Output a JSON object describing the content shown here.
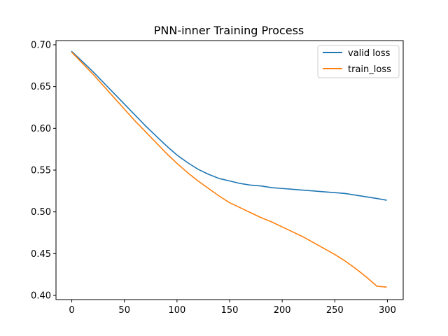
{
  "chart_data": {
    "type": "line",
    "title": "PNN-inner Training Process",
    "xlabel": "",
    "ylabel": "",
    "xlim": [
      -15,
      315
    ],
    "ylim": [
      0.395,
      0.705
    ],
    "x_ticks": [
      0,
      50,
      100,
      150,
      200,
      250,
      300
    ],
    "y_ticks": [
      0.4,
      0.45,
      0.5,
      0.55,
      0.6,
      0.65,
      0.7
    ],
    "grid": false,
    "legend_position": "top-right",
    "series": [
      {
        "name": "valid loss",
        "color": "#1f77b4",
        "x": [
          0,
          10,
          20,
          30,
          40,
          50,
          60,
          70,
          80,
          90,
          100,
          110,
          120,
          130,
          140,
          150,
          160,
          170,
          180,
          190,
          200,
          210,
          220,
          230,
          240,
          250,
          260,
          270,
          280,
          290,
          299
        ],
        "y": [
          0.692,
          0.68,
          0.668,
          0.655,
          0.642,
          0.629,
          0.616,
          0.603,
          0.591,
          0.579,
          0.568,
          0.559,
          0.551,
          0.545,
          0.54,
          0.537,
          0.534,
          0.532,
          0.531,
          0.529,
          0.528,
          0.527,
          0.526,
          0.525,
          0.524,
          0.523,
          0.522,
          0.52,
          0.518,
          0.516,
          0.514
        ]
      },
      {
        "name": "train_loss",
        "color": "#ff7f0e",
        "x": [
          0,
          10,
          20,
          30,
          40,
          50,
          60,
          70,
          80,
          90,
          100,
          110,
          120,
          130,
          140,
          150,
          160,
          170,
          180,
          190,
          200,
          210,
          220,
          230,
          240,
          250,
          260,
          270,
          280,
          290,
          299
        ],
        "y": [
          0.691,
          0.678,
          0.665,
          0.651,
          0.637,
          0.623,
          0.609,
          0.596,
          0.583,
          0.57,
          0.558,
          0.547,
          0.537,
          0.528,
          0.519,
          0.511,
          0.505,
          0.499,
          0.493,
          0.488,
          0.482,
          0.476,
          0.47,
          0.463,
          0.456,
          0.449,
          0.441,
          0.432,
          0.422,
          0.411,
          0.41
        ]
      }
    ]
  }
}
